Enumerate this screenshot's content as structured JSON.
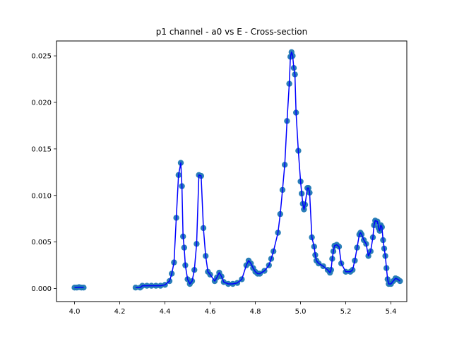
{
  "chart_data": {
    "type": "scatter",
    "title": "p1 channel - a0 vs E - Cross-section",
    "xlabel": "",
    "ylabel": "",
    "xlim": [
      3.92,
      5.47
    ],
    "ylim": [
      -0.0014,
      0.0266
    ],
    "xticks": [
      4.0,
      4.2,
      4.4,
      4.6,
      4.8,
      5.0,
      5.2,
      5.4
    ],
    "xtick_labels": [
      "4.0",
      "4.2",
      "4.4",
      "4.6",
      "4.8",
      "5.0",
      "5.2",
      "5.4"
    ],
    "yticks": [
      0.0,
      0.005,
      0.01,
      0.015,
      0.02,
      0.025
    ],
    "ytick_labels": [
      "0.000",
      "0.005",
      "0.010",
      "0.015",
      "0.020",
      "0.025"
    ],
    "grid": false,
    "series": [
      {
        "kind": "line",
        "color": "#0000ff",
        "segments": [
          {
            "x": [
              4.0,
              4.01,
              4.02,
              4.03,
              4.04
            ],
            "y": [
              0.0001,
              0.0001,
              0.00015,
              0.0001,
              0.0001
            ]
          },
          {
            "x": [
              4.27,
              4.29,
              4.3,
              4.32,
              4.34,
              4.36,
              4.38,
              4.4,
              4.42,
              4.43,
              4.44,
              4.45,
              4.46,
              4.47,
              4.475,
              4.48,
              4.485,
              4.49,
              4.5,
              4.51,
              4.52,
              4.53,
              4.54,
              4.55,
              4.56,
              4.57,
              4.58,
              4.59,
              4.6,
              4.62,
              4.63,
              4.64,
              4.65,
              4.66,
              4.68,
              4.7,
              4.72,
              4.74,
              4.76,
              4.77,
              4.78,
              4.79,
              4.8,
              4.81,
              4.82,
              4.84,
              4.86,
              4.87,
              4.88,
              4.9,
              4.91,
              4.92,
              4.93,
              4.94,
              4.95,
              4.955,
              4.96,
              4.965,
              4.97,
              4.975,
              4.98,
              4.99,
              5.0,
              5.005,
              5.01,
              5.015,
              5.02,
              5.03,
              5.035,
              5.04,
              5.05,
              5.06,
              5.065,
              5.07,
              5.08,
              5.1,
              5.12,
              5.13,
              5.135,
              5.14,
              5.145,
              5.15,
              5.16,
              5.17,
              5.18,
              5.2,
              5.22,
              5.23,
              5.24,
              5.25,
              5.26,
              5.265,
              5.27,
              5.28,
              5.29,
              5.3,
              5.31,
              5.32,
              5.325,
              5.33,
              5.34,
              5.345,
              5.35,
              5.355,
              5.36,
              5.365,
              5.37,
              5.375,
              5.38,
              5.385,
              5.39,
              5.4,
              5.41,
              5.42,
              5.43,
              5.44
            ],
            "y": [
              0.0001,
              0.0001,
              0.0003,
              0.0003,
              0.0003,
              0.0003,
              0.0003,
              0.0004,
              0.0008,
              0.0016,
              0.0028,
              0.0076,
              0.0122,
              0.0135,
              0.011,
              0.0056,
              0.0044,
              0.0025,
              0.001,
              0.0005,
              0.0008,
              0.002,
              0.0048,
              0.0122,
              0.0121,
              0.0065,
              0.0035,
              0.0018,
              0.0015,
              0.0008,
              0.0012,
              0.0017,
              0.0013,
              0.0007,
              0.0005,
              0.0005,
              0.0006,
              0.001,
              0.0025,
              0.003,
              0.0027,
              0.0022,
              0.0018,
              0.0016,
              0.0016,
              0.0019,
              0.0025,
              0.0032,
              0.004,
              0.006,
              0.008,
              0.0106,
              0.0133,
              0.018,
              0.022,
              0.0249,
              0.0254,
              0.025,
              0.0237,
              0.023,
              0.0189,
              0.0148,
              0.0115,
              0.0102,
              0.0091,
              0.0085,
              0.009,
              0.0108,
              0.0108,
              0.0103,
              0.0055,
              0.0045,
              0.0036,
              0.003,
              0.0027,
              0.0024,
              0.002,
              0.0017,
              0.002,
              0.0032,
              0.004,
              0.0046,
              0.0047,
              0.0045,
              0.0027,
              0.0018,
              0.0018,
              0.002,
              0.003,
              0.0044,
              0.0058,
              0.006,
              0.0058,
              0.0052,
              0.0048,
              0.0035,
              0.004,
              0.0055,
              0.0068,
              0.0073,
              0.0072,
              0.0065,
              0.0062,
              0.0068,
              0.0066,
              0.0052,
              0.0043,
              0.0035,
              0.0022,
              0.001,
              0.0005,
              0.0005,
              0.0008,
              0.0011,
              0.001,
              0.0008
            ]
          }
        ]
      },
      {
        "kind": "points",
        "color": "#1f77b4",
        "x": [
          4.0,
          4.01,
          4.02,
          4.03,
          4.04,
          4.27,
          4.29,
          4.3,
          4.32,
          4.34,
          4.36,
          4.38,
          4.4,
          4.42,
          4.43,
          4.44,
          4.45,
          4.46,
          4.47,
          4.475,
          4.48,
          4.485,
          4.49,
          4.5,
          4.51,
          4.52,
          4.53,
          4.54,
          4.55,
          4.56,
          4.57,
          4.58,
          4.59,
          4.6,
          4.62,
          4.63,
          4.64,
          4.65,
          4.66,
          4.68,
          4.7,
          4.72,
          4.74,
          4.76,
          4.77,
          4.78,
          4.79,
          4.8,
          4.81,
          4.82,
          4.84,
          4.86,
          4.87,
          4.88,
          4.9,
          4.91,
          4.92,
          4.93,
          4.94,
          4.95,
          4.955,
          4.96,
          4.965,
          4.97,
          4.975,
          4.98,
          4.99,
          5.0,
          5.005,
          5.01,
          5.015,
          5.02,
          5.03,
          5.035,
          5.04,
          5.05,
          5.06,
          5.065,
          5.07,
          5.08,
          5.1,
          5.12,
          5.13,
          5.135,
          5.14,
          5.145,
          5.15,
          5.16,
          5.17,
          5.18,
          5.2,
          5.22,
          5.23,
          5.24,
          5.25,
          5.26,
          5.265,
          5.27,
          5.28,
          5.29,
          5.3,
          5.31,
          5.32,
          5.325,
          5.33,
          5.34,
          5.345,
          5.35,
          5.355,
          5.36,
          5.365,
          5.37,
          5.375,
          5.38,
          5.385,
          5.39,
          5.4,
          5.41,
          5.42,
          5.43,
          5.44
        ],
        "y": [
          0.0001,
          0.0001,
          0.00015,
          0.0001,
          0.0001,
          0.0001,
          0.0001,
          0.0003,
          0.0003,
          0.0003,
          0.0003,
          0.0003,
          0.0004,
          0.0008,
          0.0016,
          0.0028,
          0.0076,
          0.0122,
          0.0135,
          0.011,
          0.0056,
          0.0044,
          0.0025,
          0.001,
          0.0005,
          0.0008,
          0.002,
          0.0048,
          0.0122,
          0.0121,
          0.0065,
          0.0035,
          0.0018,
          0.0015,
          0.0008,
          0.0012,
          0.0017,
          0.0013,
          0.0007,
          0.0005,
          0.0005,
          0.0006,
          0.001,
          0.0025,
          0.003,
          0.0027,
          0.0022,
          0.0018,
          0.0016,
          0.0016,
          0.0019,
          0.0025,
          0.0032,
          0.004,
          0.006,
          0.008,
          0.0106,
          0.0133,
          0.018,
          0.022,
          0.0249,
          0.0254,
          0.025,
          0.0237,
          0.023,
          0.0189,
          0.0148,
          0.0115,
          0.0102,
          0.0091,
          0.0085,
          0.009,
          0.0108,
          0.0108,
          0.0103,
          0.0055,
          0.0045,
          0.0036,
          0.003,
          0.0027,
          0.0024,
          0.002,
          0.0017,
          0.002,
          0.0032,
          0.004,
          0.0046,
          0.0047,
          0.0045,
          0.0027,
          0.0018,
          0.0018,
          0.002,
          0.003,
          0.0044,
          0.0058,
          0.006,
          0.0058,
          0.0052,
          0.0048,
          0.0035,
          0.004,
          0.0055,
          0.0068,
          0.0073,
          0.0072,
          0.0065,
          0.0062,
          0.0068,
          0.0066,
          0.0052,
          0.0043,
          0.0035,
          0.0022,
          0.001,
          0.0005,
          0.0005,
          0.0008,
          0.0011,
          0.001,
          0.0008
        ]
      }
    ]
  }
}
